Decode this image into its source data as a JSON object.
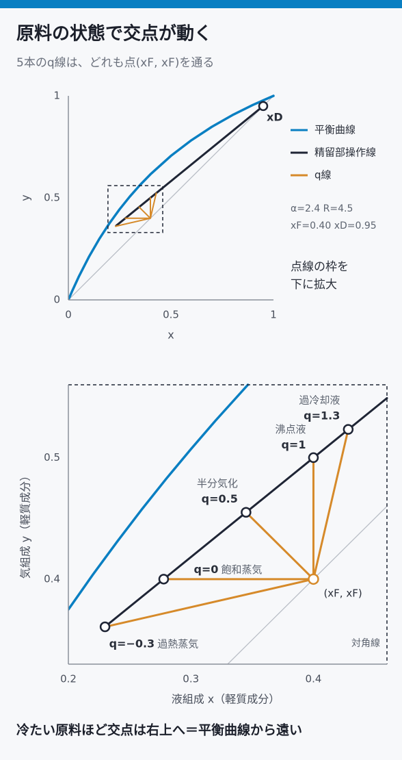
{
  "header": {
    "title": "原料の状態で交点が動く",
    "subtitle": "5本のq線は、どれも点(xF, xF)を通る"
  },
  "chart_data": [
    {
      "type": "line",
      "xlabel": "x",
      "ylabel": "y",
      "xlim": [
        0,
        1
      ],
      "ylim": [
        0,
        1
      ],
      "xticks": [
        0,
        0.5,
        1
      ],
      "yticks": [
        0,
        0.5,
        1
      ],
      "series": [
        {
          "color": "#b9bec6",
          "x": [
            0,
            1
          ],
          "y": [
            0,
            1
          ]
        },
        {
          "name": "平衡曲線",
          "color": "#0a7fc2",
          "x": [
            0,
            0.02,
            0.05,
            0.1,
            0.15,
            0.2,
            0.25,
            0.3,
            0.35,
            0.4,
            0.5,
            0.6,
            0.7,
            0.8,
            0.9,
            1
          ],
          "y": [
            0,
            0.0467,
            0.1121,
            0.2105,
            0.2975,
            0.375,
            0.4444,
            0.507,
            0.5638,
            0.6154,
            0.7059,
            0.7826,
            0.8485,
            0.9057,
            0.9558,
            1
          ]
        },
        {
          "name": "精留部操作線",
          "color": "#1f2535",
          "x": [
            0.233,
            0.95
          ],
          "y": [
            0.3634,
            0.95
          ]
        },
        {
          "name": "q線",
          "color": "#d68a2a",
          "x": [
            0.4,
            0.2299,
            null,
            0.4,
            0.2778,
            null,
            0.4,
            0.345,
            null,
            0.4,
            0.4,
            null,
            0.4,
            0.4284
          ],
          "y": [
            0.4,
            0.3607,
            null,
            0.4,
            0.4,
            null,
            0.4,
            0.455,
            null,
            0.4,
            0.5,
            null,
            0.4,
            0.5233
          ]
        }
      ],
      "xD_point": {
        "x": 0.95,
        "y": 0.95,
        "label": "xD"
      },
      "zoom_box": {
        "xlim": [
          0.193,
          0.46
        ],
        "ylim": [
          0.33,
          0.56
        ]
      },
      "params": [
        "α=2.4 R=4.5",
        "xF=0.40 xD=0.95"
      ],
      "note": [
        "点線の枠を",
        "下に拡大"
      ]
    },
    {
      "type": "line",
      "xlabel": "液組成 x（軽質成分）",
      "ylabel": "気組成 y（軽質成分）",
      "xlim": [
        0.2,
        0.46
      ],
      "ylim": [
        0.33,
        0.56
      ],
      "xticks": [
        0.2,
        0.3,
        0.4
      ],
      "yticks": [
        0.4,
        0.5
      ],
      "series": [
        {
          "color": "#b9bec6",
          "x": [
            0.33,
            0.46
          ],
          "y": [
            0.33,
            0.46
          ]
        },
        {
          "color": "#0a7fc2",
          "x": [
            0.2,
            0.22,
            0.24,
            0.26,
            0.28,
            0.3,
            0.32,
            0.3465
          ],
          "y": [
            0.375,
            0.4037,
            0.4311,
            0.4575,
            0.4828,
            0.507,
            0.5304,
            0.56
          ]
        },
        {
          "color": "#1f2535",
          "x": [
            0.23,
            0.46
          ],
          "y": [
            0.3609,
            0.549
          ]
        }
      ],
      "q_color": "#d68a2a",
      "feed": {
        "x": 0.4,
        "y": 0.4,
        "label": "(xF, xF)"
      },
      "q_lines": [
        {
          "label": "q=−0.3",
          "state": "過熱蒸気",
          "x": 0.2299,
          "y": 0.3607
        },
        {
          "label": "q=0",
          "state": "飽和蒸気",
          "x": 0.2778,
          "y": 0.4
        },
        {
          "label": "q=0.5",
          "state": "半分気化",
          "x": 0.345,
          "y": 0.455
        },
        {
          "label": "q=1",
          "state": "沸点液",
          "x": 0.4,
          "y": 0.5
        },
        {
          "label": "q=1.3",
          "state": "過冷却液",
          "x": 0.4284,
          "y": 0.5233
        }
      ],
      "diagonal_label": "対角線"
    }
  ],
  "footer": "冷たい原料ほど交点は右上へ＝平衡曲線から遠い"
}
